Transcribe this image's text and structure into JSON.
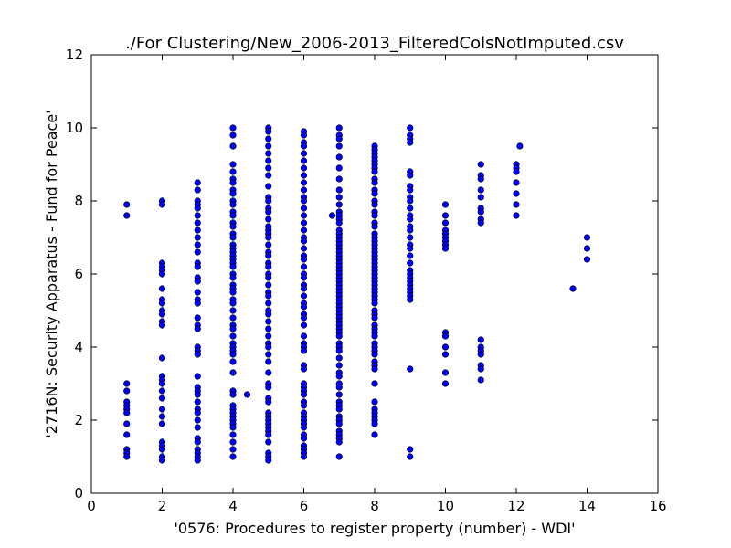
{
  "chart_data": {
    "type": "scatter",
    "title": "./For Clustering/New_2006-2013_FilteredColsNotImputed.csv",
    "xlabel": "'0576: Procedures to register property  (number) - WDI'",
    "ylabel": "'2716N: Security Apparatus - Fund for Peace'",
    "xlim": [
      0,
      16
    ],
    "ylim": [
      0,
      12
    ],
    "xticks": [
      0,
      2,
      4,
      6,
      8,
      10,
      12,
      14,
      16
    ],
    "yticks": [
      0,
      2,
      4,
      6,
      8,
      10,
      12
    ],
    "grid": false,
    "marker_color": "#0000ff",
    "points": [
      [
        1,
        7.9
      ],
      [
        1,
        7.6
      ],
      [
        1,
        3.0
      ],
      [
        1,
        2.8
      ],
      [
        1,
        2.5
      ],
      [
        1,
        2.4
      ],
      [
        1,
        2.3
      ],
      [
        1,
        2.2
      ],
      [
        1,
        1.9
      ],
      [
        1,
        1.6
      ],
      [
        1,
        1.2
      ],
      [
        1,
        1.1
      ],
      [
        1,
        1.0
      ],
      [
        2,
        8.0
      ],
      [
        2,
        7.9
      ],
      [
        2,
        6.3
      ],
      [
        2,
        6.2
      ],
      [
        2,
        6.1
      ],
      [
        2,
        6.0
      ],
      [
        2,
        5.6
      ],
      [
        2,
        5.3
      ],
      [
        2,
        5.2
      ],
      [
        2,
        5.0
      ],
      [
        2,
        4.9
      ],
      [
        2,
        4.7
      ],
      [
        2,
        4.6
      ],
      [
        2,
        3.7
      ],
      [
        2,
        3.2
      ],
      [
        2,
        3.1
      ],
      [
        2,
        3.0
      ],
      [
        2,
        2.8
      ],
      [
        2,
        2.6
      ],
      [
        2,
        2.3
      ],
      [
        2,
        2.1
      ],
      [
        2,
        1.9
      ],
      [
        2,
        1.4
      ],
      [
        2,
        1.3
      ],
      [
        2,
        1.2
      ],
      [
        2,
        1.0
      ],
      [
        2,
        0.9
      ],
      [
        3,
        8.5
      ],
      [
        3,
        8.3
      ],
      [
        3,
        8.0
      ],
      [
        3,
        7.9
      ],
      [
        3,
        7.8
      ],
      [
        3,
        7.6
      ],
      [
        3,
        7.4
      ],
      [
        3,
        7.2
      ],
      [
        3,
        7.0
      ],
      [
        3,
        6.8
      ],
      [
        3,
        6.6
      ],
      [
        3,
        6.3
      ],
      [
        3,
        6.2
      ],
      [
        3,
        5.9
      ],
      [
        3,
        5.8
      ],
      [
        3,
        5.5
      ],
      [
        3,
        5.3
      ],
      [
        3,
        5.2
      ],
      [
        3,
        4.8
      ],
      [
        3,
        4.6
      ],
      [
        3,
        4.5
      ],
      [
        3,
        4.0
      ],
      [
        3,
        3.9
      ],
      [
        3,
        3.8
      ],
      [
        3,
        3.2
      ],
      [
        3,
        2.9
      ],
      [
        3,
        2.8
      ],
      [
        3,
        2.7
      ],
      [
        3,
        2.5
      ],
      [
        3,
        2.3
      ],
      [
        3,
        2.2
      ],
      [
        3,
        2.0
      ],
      [
        3,
        1.8
      ],
      [
        3,
        1.5
      ],
      [
        3,
        1.4
      ],
      [
        3,
        1.2
      ],
      [
        3,
        1.1
      ],
      [
        3,
        1.0
      ],
      [
        3,
        0.9
      ],
      [
        4,
        10.0
      ],
      [
        4,
        9.8
      ],
      [
        4,
        9.5
      ],
      [
        4,
        9.0
      ],
      [
        4,
        8.8
      ],
      [
        4,
        8.6
      ],
      [
        4,
        8.5
      ],
      [
        4,
        8.3
      ],
      [
        4,
        8.2
      ],
      [
        4,
        8.0
      ],
      [
        4,
        7.9
      ],
      [
        4,
        7.7
      ],
      [
        4,
        7.6
      ],
      [
        4,
        7.4
      ],
      [
        4,
        7.3
      ],
      [
        4,
        7.1
      ],
      [
        4,
        7.0
      ],
      [
        4,
        6.8
      ],
      [
        4,
        6.7
      ],
      [
        4,
        6.6
      ],
      [
        4,
        6.5
      ],
      [
        4,
        6.4
      ],
      [
        4,
        6.3
      ],
      [
        4,
        6.2
      ],
      [
        4,
        6.0
      ],
      [
        4,
        5.9
      ],
      [
        4,
        5.7
      ],
      [
        4,
        5.6
      ],
      [
        4,
        5.5
      ],
      [
        4,
        5.3
      ],
      [
        4,
        5.2
      ],
      [
        4,
        5.0
      ],
      [
        4,
        4.8
      ],
      [
        4,
        4.6
      ],
      [
        4,
        4.5
      ],
      [
        4,
        4.3
      ],
      [
        4,
        4.1
      ],
      [
        4,
        4.0
      ],
      [
        4,
        3.9
      ],
      [
        4,
        3.8
      ],
      [
        4,
        3.6
      ],
      [
        4,
        3.3
      ],
      [
        4,
        2.8
      ],
      [
        4,
        2.7
      ],
      [
        4,
        2.4
      ],
      [
        4,
        2.3
      ],
      [
        4,
        2.2
      ],
      [
        4,
        2.1
      ],
      [
        4,
        2.0
      ],
      [
        4,
        1.9
      ],
      [
        4,
        1.8
      ],
      [
        4,
        1.6
      ],
      [
        4,
        1.4
      ],
      [
        4,
        1.2
      ],
      [
        4,
        1.0
      ],
      [
        4.4,
        2.7
      ],
      [
        5,
        10.0
      ],
      [
        5,
        9.9
      ],
      [
        5,
        9.7
      ],
      [
        5,
        9.5
      ],
      [
        5,
        9.3
      ],
      [
        5,
        9.1
      ],
      [
        5,
        8.9
      ],
      [
        5,
        8.7
      ],
      [
        5,
        8.4
      ],
      [
        5,
        8.1
      ],
      [
        5,
        8.0
      ],
      [
        5,
        7.8
      ],
      [
        5,
        7.7
      ],
      [
        5,
        7.5
      ],
      [
        5,
        7.3
      ],
      [
        5,
        7.2
      ],
      [
        5,
        7.1
      ],
      [
        5,
        7.0
      ],
      [
        5,
        6.8
      ],
      [
        5,
        6.6
      ],
      [
        5,
        6.5
      ],
      [
        5,
        6.3
      ],
      [
        5,
        6.2
      ],
      [
        5,
        6.0
      ],
      [
        5,
        5.9
      ],
      [
        5,
        5.7
      ],
      [
        5,
        5.5
      ],
      [
        5,
        5.4
      ],
      [
        5,
        5.2
      ],
      [
        5,
        5.0
      ],
      [
        5,
        4.9
      ],
      [
        5,
        4.7
      ],
      [
        5,
        4.5
      ],
      [
        5,
        4.3
      ],
      [
        5,
        4.1
      ],
      [
        5,
        4.0
      ],
      [
        5,
        3.8
      ],
      [
        5,
        3.6
      ],
      [
        5,
        3.3
      ],
      [
        5,
        3.0
      ],
      [
        5,
        2.9
      ],
      [
        5,
        2.6
      ],
      [
        5,
        2.5
      ],
      [
        5,
        2.2
      ],
      [
        5,
        2.1
      ],
      [
        5,
        2.0
      ],
      [
        5,
        1.9
      ],
      [
        5,
        1.8
      ],
      [
        5,
        1.7
      ],
      [
        5,
        1.6
      ],
      [
        5,
        1.4
      ],
      [
        5,
        1.1
      ],
      [
        5,
        1.0
      ],
      [
        5,
        0.9
      ],
      [
        6,
        9.9
      ],
      [
        6,
        9.8
      ],
      [
        6,
        9.6
      ],
      [
        6,
        9.5
      ],
      [
        6,
        9.3
      ],
      [
        6,
        9.1
      ],
      [
        6,
        8.9
      ],
      [
        6,
        8.7
      ],
      [
        6,
        8.5
      ],
      [
        6,
        8.3
      ],
      [
        6,
        8.1
      ],
      [
        6,
        8.0
      ],
      [
        6,
        7.8
      ],
      [
        6,
        7.6
      ],
      [
        6,
        7.4
      ],
      [
        6,
        7.2
      ],
      [
        6,
        7.0
      ],
      [
        6,
        6.9
      ],
      [
        6,
        6.7
      ],
      [
        6,
        6.5
      ],
      [
        6,
        6.4
      ],
      [
        6,
        6.2
      ],
      [
        6,
        6.0
      ],
      [
        6,
        5.9
      ],
      [
        6,
        5.7
      ],
      [
        6,
        5.6
      ],
      [
        6,
        5.4
      ],
      [
        6,
        5.2
      ],
      [
        6,
        5.1
      ],
      [
        6,
        4.9
      ],
      [
        6,
        4.8
      ],
      [
        6,
        4.6
      ],
      [
        6,
        4.3
      ],
      [
        6,
        4.1
      ],
      [
        6,
        4.0
      ],
      [
        6,
        3.9
      ],
      [
        6,
        3.5
      ],
      [
        6,
        3.4
      ],
      [
        6,
        3.0
      ],
      [
        6,
        2.9
      ],
      [
        6,
        2.8
      ],
      [
        6,
        2.7
      ],
      [
        6,
        2.5
      ],
      [
        6,
        2.4
      ],
      [
        6,
        2.2
      ],
      [
        6,
        2.1
      ],
      [
        6,
        2.0
      ],
      [
        6,
        1.9
      ],
      [
        6,
        1.8
      ],
      [
        6,
        1.6
      ],
      [
        6,
        1.5
      ],
      [
        6,
        1.3
      ],
      [
        6,
        1.2
      ],
      [
        6,
        1.1
      ],
      [
        6,
        1.0
      ],
      [
        6.8,
        7.6
      ],
      [
        7,
        10.0
      ],
      [
        7,
        9.8
      ],
      [
        7,
        9.7
      ],
      [
        7,
        9.5
      ],
      [
        7,
        9.2
      ],
      [
        7,
        8.9
      ],
      [
        7,
        8.6
      ],
      [
        7,
        8.3
      ],
      [
        7,
        8.1
      ],
      [
        7,
        7.9
      ],
      [
        7,
        7.7
      ],
      [
        7,
        7.6
      ],
      [
        7,
        7.5
      ],
      [
        7,
        7.4
      ],
      [
        7,
        7.2
      ],
      [
        7,
        7.1
      ],
      [
        7,
        7.0
      ],
      [
        7,
        6.9
      ],
      [
        7,
        6.8
      ],
      [
        7,
        6.7
      ],
      [
        7,
        6.6
      ],
      [
        7,
        6.5
      ],
      [
        7,
        6.4
      ],
      [
        7,
        6.3
      ],
      [
        7,
        6.2
      ],
      [
        7,
        6.1
      ],
      [
        7,
        6.0
      ],
      [
        7,
        5.9
      ],
      [
        7,
        5.8
      ],
      [
        7,
        5.7
      ],
      [
        7,
        5.6
      ],
      [
        7,
        5.5
      ],
      [
        7,
        5.4
      ],
      [
        7,
        5.3
      ],
      [
        7,
        5.2
      ],
      [
        7,
        5.1
      ],
      [
        7,
        5.0
      ],
      [
        7,
        4.9
      ],
      [
        7,
        4.8
      ],
      [
        7,
        4.7
      ],
      [
        7,
        4.6
      ],
      [
        7,
        4.5
      ],
      [
        7,
        4.4
      ],
      [
        7,
        4.3
      ],
      [
        7,
        4.1
      ],
      [
        7,
        4.0
      ],
      [
        7,
        3.9
      ],
      [
        7,
        3.7
      ],
      [
        7,
        3.5
      ],
      [
        7,
        3.3
      ],
      [
        7,
        3.2
      ],
      [
        7,
        3.0
      ],
      [
        7,
        2.9
      ],
      [
        7,
        2.7
      ],
      [
        7,
        2.5
      ],
      [
        7,
        2.4
      ],
      [
        7,
        2.3
      ],
      [
        7,
        2.1
      ],
      [
        7,
        2.0
      ],
      [
        7,
        1.9
      ],
      [
        7,
        1.7
      ],
      [
        7,
        1.6
      ],
      [
        7,
        1.5
      ],
      [
        7,
        1.4
      ],
      [
        7,
        1.0
      ],
      [
        8,
        9.5
      ],
      [
        8,
        9.4
      ],
      [
        8,
        9.3
      ],
      [
        8,
        9.2
      ],
      [
        8,
        9.1
      ],
      [
        8,
        9.0
      ],
      [
        8,
        8.9
      ],
      [
        8,
        8.8
      ],
      [
        8,
        8.6
      ],
      [
        8,
        8.5
      ],
      [
        8,
        8.3
      ],
      [
        8,
        8.2
      ],
      [
        8,
        8.0
      ],
      [
        8,
        7.9
      ],
      [
        8,
        7.7
      ],
      [
        8,
        7.6
      ],
      [
        8,
        7.4
      ],
      [
        8,
        7.3
      ],
      [
        8,
        7.1
      ],
      [
        8,
        7.0
      ],
      [
        8,
        6.9
      ],
      [
        8,
        6.8
      ],
      [
        8,
        6.7
      ],
      [
        8,
        6.6
      ],
      [
        8,
        6.5
      ],
      [
        8,
        6.4
      ],
      [
        8,
        6.3
      ],
      [
        8,
        6.2
      ],
      [
        8,
        6.1
      ],
      [
        8,
        6.0
      ],
      [
        8,
        5.9
      ],
      [
        8,
        5.8
      ],
      [
        8,
        5.7
      ],
      [
        8,
        5.6
      ],
      [
        8,
        5.5
      ],
      [
        8,
        5.4
      ],
      [
        8,
        5.3
      ],
      [
        8,
        5.2
      ],
      [
        8,
        5.0
      ],
      [
        8,
        4.9
      ],
      [
        8,
        4.8
      ],
      [
        8,
        4.6
      ],
      [
        8,
        4.5
      ],
      [
        8,
        4.4
      ],
      [
        8,
        4.3
      ],
      [
        8,
        4.1
      ],
      [
        8,
        4.0
      ],
      [
        8,
        3.9
      ],
      [
        8,
        3.8
      ],
      [
        8,
        3.6
      ],
      [
        8,
        3.5
      ],
      [
        8,
        3.4
      ],
      [
        8,
        3.0
      ],
      [
        8,
        2.5
      ],
      [
        8,
        2.3
      ],
      [
        8,
        2.2
      ],
      [
        8,
        2.1
      ],
      [
        8,
        2.0
      ],
      [
        8,
        1.9
      ],
      [
        8,
        1.6
      ],
      [
        9,
        10.0
      ],
      [
        9,
        9.8
      ],
      [
        9,
        9.7
      ],
      [
        9,
        9.6
      ],
      [
        9,
        8.8
      ],
      [
        9,
        8.7
      ],
      [
        9,
        8.4
      ],
      [
        9,
        8.3
      ],
      [
        9,
        8.1
      ],
      [
        9,
        8.0
      ],
      [
        9,
        7.8
      ],
      [
        9,
        7.6
      ],
      [
        9,
        7.5
      ],
      [
        9,
        7.3
      ],
      [
        9,
        7.2
      ],
      [
        9,
        7.0
      ],
      [
        9,
        6.8
      ],
      [
        9,
        6.7
      ],
      [
        9,
        6.5
      ],
      [
        9,
        6.3
      ],
      [
        9,
        6.1
      ],
      [
        9,
        6.0
      ],
      [
        9,
        5.9
      ],
      [
        9,
        5.8
      ],
      [
        9,
        5.7
      ],
      [
        9,
        5.6
      ],
      [
        9,
        5.5
      ],
      [
        9,
        5.4
      ],
      [
        9,
        5.3
      ],
      [
        9,
        3.4
      ],
      [
        9,
        1.2
      ],
      [
        9,
        1.0
      ],
      [
        10,
        7.9
      ],
      [
        10,
        7.6
      ],
      [
        10,
        7.4
      ],
      [
        10,
        7.2
      ],
      [
        10,
        7.1
      ],
      [
        10,
        7.0
      ],
      [
        10,
        6.9
      ],
      [
        10,
        6.8
      ],
      [
        10,
        6.7
      ],
      [
        10,
        4.4
      ],
      [
        10,
        4.3
      ],
      [
        10,
        4.0
      ],
      [
        10,
        3.8
      ],
      [
        10,
        3.3
      ],
      [
        10,
        3.0
      ],
      [
        11,
        9.0
      ],
      [
        11,
        8.7
      ],
      [
        11,
        8.6
      ],
      [
        11,
        8.3
      ],
      [
        11,
        8.1
      ],
      [
        11,
        7.8
      ],
      [
        11,
        7.7
      ],
      [
        11,
        7.5
      ],
      [
        11,
        7.4
      ],
      [
        11,
        4.2
      ],
      [
        11,
        4.0
      ],
      [
        11,
        3.9
      ],
      [
        11,
        3.8
      ],
      [
        11,
        3.5
      ],
      [
        11,
        3.4
      ],
      [
        11,
        3.1
      ],
      [
        12,
        9.0
      ],
      [
        12,
        8.9
      ],
      [
        12,
        8.8
      ],
      [
        12,
        8.5
      ],
      [
        12,
        8.2
      ],
      [
        12,
        7.9
      ],
      [
        12,
        7.6
      ],
      [
        12.1,
        9.5
      ],
      [
        13.6,
        5.6
      ],
      [
        14,
        7.0
      ],
      [
        14,
        6.7
      ],
      [
        14,
        6.4
      ]
    ]
  }
}
